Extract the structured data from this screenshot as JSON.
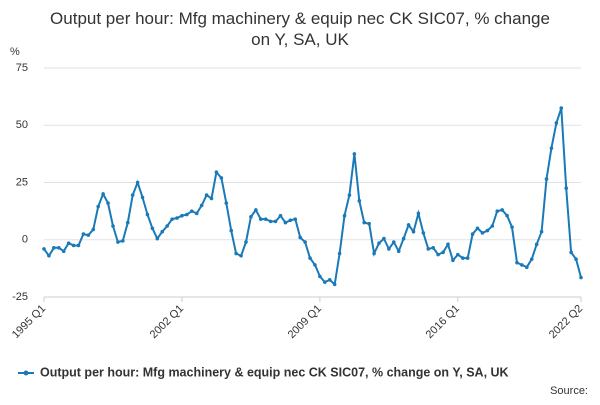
{
  "chart_data": {
    "type": "line",
    "title": "Output per hour: Mfg machinery & equip nec CK SIC07, % change on Y, SA, UK",
    "y_label": "%",
    "source": "Source:",
    "categories": [
      "1995 Q1",
      null,
      null,
      null,
      null,
      null,
      null,
      null,
      null,
      null,
      null,
      null,
      null,
      null,
      null,
      null,
      null,
      null,
      null,
      null,
      null,
      null,
      null,
      null,
      null,
      null,
      null,
      null,
      "2002 Q1",
      null,
      null,
      null,
      null,
      null,
      null,
      null,
      null,
      null,
      null,
      null,
      null,
      null,
      null,
      null,
      null,
      null,
      null,
      null,
      null,
      null,
      null,
      null,
      null,
      null,
      null,
      null,
      "2009 Q1",
      null,
      null,
      null,
      null,
      null,
      null,
      null,
      null,
      null,
      null,
      null,
      null,
      null,
      null,
      null,
      null,
      null,
      null,
      null,
      null,
      null,
      null,
      null,
      null,
      null,
      null,
      null,
      "2016 Q1",
      null,
      null,
      null,
      null,
      null,
      null,
      null,
      null,
      null,
      null,
      null,
      null,
      null,
      null,
      null,
      null,
      null,
      null,
      null,
      null,
      null,
      null,
      null,
      null,
      "2022 Q2"
    ],
    "series": [
      {
        "name": "Output per hour: Mfg machinery & equip nec CK SIC07, % change on Y, SA, UK",
        "color": "#1a7ab8",
        "values": [
          -4,
          -7,
          -3.5,
          -3.5,
          -5,
          -1.5,
          -2.5,
          -2.5,
          2.5,
          2,
          4.5,
          14.5,
          20,
          16,
          6,
          -1,
          -0.5,
          7.5,
          19.5,
          25,
          18.5,
          11,
          5,
          0.5,
          3.5,
          6,
          9,
          9.5,
          10.5,
          11,
          12.5,
          11.5,
          15,
          19.5,
          18,
          29.5,
          27,
          16,
          4,
          -6,
          -7,
          -1,
          10,
          13,
          9,
          9,
          8,
          8,
          10.5,
          7.5,
          8.5,
          9,
          1,
          -1,
          -8,
          -11,
          -16,
          -18.5,
          -17.5,
          -19.5,
          -6,
          10.5,
          19.5,
          37.5,
          17,
          7.5,
          7,
          -6,
          -1.5,
          0.5,
          -4,
          -1,
          -5,
          0.5,
          6.5,
          3.5,
          11.5,
          3,
          -4,
          -3.5,
          -6.5,
          -5.5,
          -2,
          -9,
          -6.5,
          -8,
          -8,
          2.5,
          5,
          3,
          4,
          6,
          12.5,
          13,
          10.5,
          5.5,
          -10,
          -11,
          -12,
          -8.5,
          -2,
          3.5,
          26.5,
          40,
          51,
          57.5,
          22.5,
          -5.5,
          -8.5,
          -16.5
        ]
      }
    ],
    "ylim": [
      -25,
      75
    ],
    "yticks": [
      -25,
      0,
      25,
      50,
      75
    ],
    "grid": true
  }
}
